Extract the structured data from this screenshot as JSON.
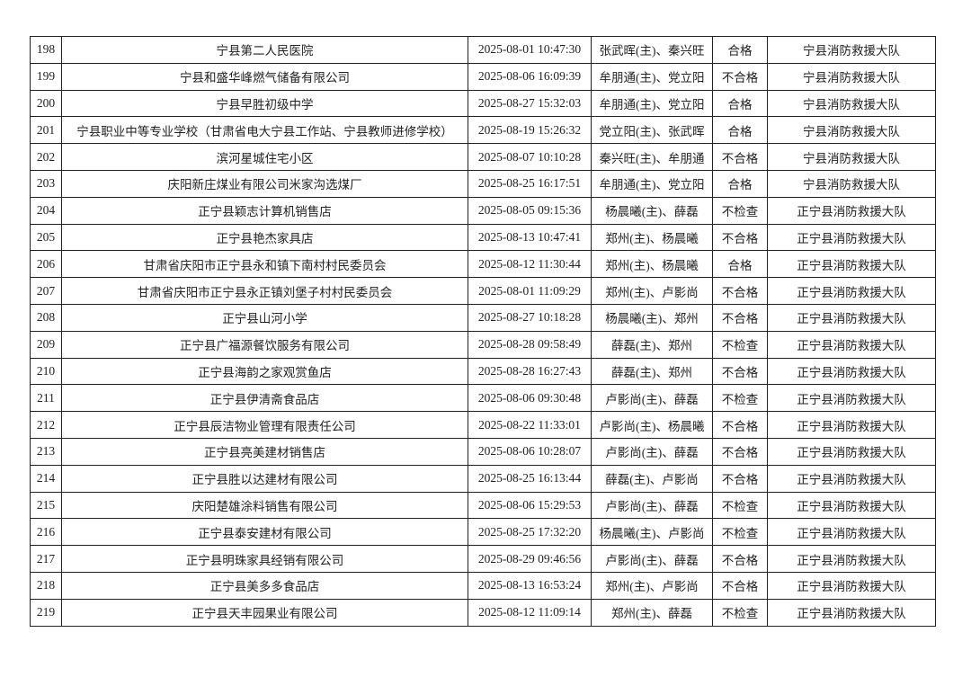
{
  "rows": [
    [
      "198",
      "宁县第二人民医院",
      "2025-08-01 10:47:30",
      "张武晖(主)、秦兴旺",
      "合格",
      "宁县消防救援大队"
    ],
    [
      "199",
      "宁县和盛华峰燃气储备有限公司",
      "2025-08-06 16:09:39",
      "牟朋通(主)、党立阳",
      "不合格",
      "宁县消防救援大队"
    ],
    [
      "200",
      "宁县早胜初级中学",
      "2025-08-27 15:32:03",
      "牟朋通(主)、党立阳",
      "合格",
      "宁县消防救援大队"
    ],
    [
      "201",
      "宁县职业中等专业学校（甘肃省电大宁县工作站、宁县教师进修学校）",
      "2025-08-19 15:26:32",
      "党立阳(主)、张武晖",
      "合格",
      "宁县消防救援大队"
    ],
    [
      "202",
      "滨河星城住宅小区",
      "2025-08-07 10:10:28",
      "秦兴旺(主)、牟朋通",
      "不合格",
      "宁县消防救援大队"
    ],
    [
      "203",
      "庆阳新庄煤业有限公司米家沟选煤厂",
      "2025-08-25 16:17:51",
      "牟朋通(主)、党立阳",
      "合格",
      "宁县消防救援大队"
    ],
    [
      "204",
      "正宁县颖志计算机销售店",
      "2025-08-05 09:15:36",
      "杨晨曦(主)、薛磊",
      "不检查",
      "正宁县消防救援大队"
    ],
    [
      "205",
      "正宁县艳杰家具店",
      "2025-08-13 10:47:41",
      "郑州(主)、杨晨曦",
      "不合格",
      "正宁县消防救援大队"
    ],
    [
      "206",
      "甘肃省庆阳市正宁县永和镇下南村村民委员会",
      "2025-08-12 11:30:44",
      "郑州(主)、杨晨曦",
      "合格",
      "正宁县消防救援大队"
    ],
    [
      "207",
      "甘肃省庆阳市正宁县永正镇刘堡子村村民委员会",
      "2025-08-01 11:09:29",
      "郑州(主)、卢影尚",
      "不合格",
      "正宁县消防救援大队"
    ],
    [
      "208",
      "正宁县山河小学",
      "2025-08-27 10:18:28",
      "杨晨曦(主)、郑州",
      "不合格",
      "正宁县消防救援大队"
    ],
    [
      "209",
      "正宁县广福源餐饮服务有限公司",
      "2025-08-28 09:58:49",
      "薛磊(主)、郑州",
      "不检查",
      "正宁县消防救援大队"
    ],
    [
      "210",
      "正宁县海韵之家观赏鱼店",
      "2025-08-28 16:27:43",
      "薛磊(主)、郑州",
      "不合格",
      "正宁县消防救援大队"
    ],
    [
      "211",
      "正宁县伊清斋食品店",
      "2025-08-06 09:30:48",
      "卢影尚(主)、薛磊",
      "不检查",
      "正宁县消防救援大队"
    ],
    [
      "212",
      "正宁县辰洁物业管理有限责任公司",
      "2025-08-22 11:33:01",
      "卢影尚(主)、杨晨曦",
      "不合格",
      "正宁县消防救援大队"
    ],
    [
      "213",
      "正宁县亮美建材销售店",
      "2025-08-06 10:28:07",
      "卢影尚(主)、薛磊",
      "不合格",
      "正宁县消防救援大队"
    ],
    [
      "214",
      "正宁县胜以达建材有限公司",
      "2025-08-25 16:13:44",
      "薛磊(主)、卢影尚",
      "不合格",
      "正宁县消防救援大队"
    ],
    [
      "215",
      "庆阳楚雄涂料销售有限公司",
      "2025-08-06 15:29:53",
      "卢影尚(主)、薛磊",
      "不检查",
      "正宁县消防救援大队"
    ],
    [
      "216",
      "正宁县泰安建材有限公司",
      "2025-08-25 17:32:20",
      "杨晨曦(主)、卢影尚",
      "不检查",
      "正宁县消防救援大队"
    ],
    [
      "217",
      "正宁县明珠家具经销有限公司",
      "2025-08-29 09:46:56",
      "卢影尚(主)、薛磊",
      "不合格",
      "正宁县消防救援大队"
    ],
    [
      "218",
      "正宁县美多多食品店",
      "2025-08-13 16:53:24",
      "郑州(主)、卢影尚",
      "不合格",
      "正宁县消防救援大队"
    ],
    [
      "219",
      "正宁县天丰园果业有限公司",
      "2025-08-12 11:09:14",
      "郑州(主)、薛磊",
      "不检查",
      "正宁县消防救援大队"
    ]
  ]
}
